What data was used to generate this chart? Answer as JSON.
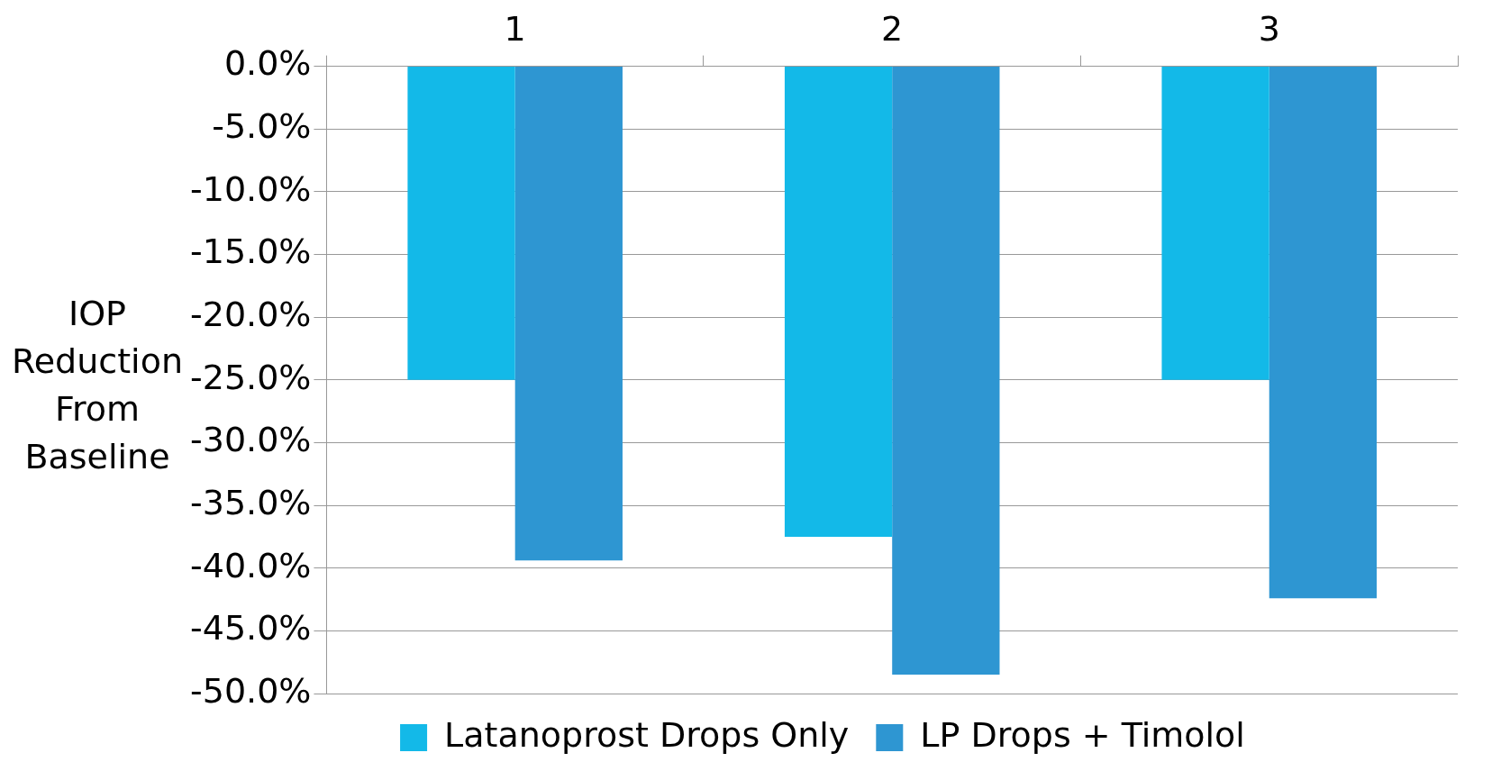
{
  "chart_data": {
    "type": "bar",
    "ylabel": "IOP Reduction From Baseline",
    "categories": [
      "1",
      "2",
      "3"
    ],
    "series": [
      {
        "name": "Latanoprost Drops Only",
        "color": "#13b9e8",
        "values": [
          -25,
          -37.5,
          -25
        ]
      },
      {
        "name": "LP Drops + Timolol",
        "color": "#2e96d2",
        "values": [
          -39.4,
          -48.5,
          -42.4
        ]
      }
    ],
    "ylim": [
      -50,
      0
    ],
    "yticks": [
      {
        "value": 0,
        "label": "0.0%"
      },
      {
        "value": -5,
        "label": "-5.0%"
      },
      {
        "value": -10,
        "label": "-10.0%"
      },
      {
        "value": -15,
        "label": "-15.0%"
      },
      {
        "value": -20,
        "label": "-20.0%"
      },
      {
        "value": -25,
        "label": "-25.0%"
      },
      {
        "value": -30,
        "label": "-30.0%"
      },
      {
        "value": -35,
        "label": "-35.0%"
      },
      {
        "value": -40,
        "label": "-40.0%"
      },
      {
        "value": -45,
        "label": "-45.0%"
      },
      {
        "value": -50,
        "label": "-50.0%"
      }
    ],
    "grid": "y",
    "legend": "bottom"
  }
}
